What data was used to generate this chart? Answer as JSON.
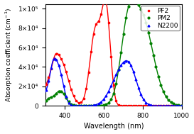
{
  "title": "",
  "xlabel": "Wavelength (nm)",
  "ylabel": "Absorption coefficient (cm$^{-1}$)",
  "xlim": [
    300,
    1000
  ],
  "ylim": [
    0,
    105000.0
  ],
  "yticks": [
    0,
    20000,
    40000,
    60000,
    80000,
    100000
  ],
  "ytick_labels": [
    "0",
    "2×10⁴",
    "4×10⁴",
    "6×10⁴",
    "8×10⁴",
    "1×10⁵"
  ],
  "xticks": [
    400,
    600,
    800,
    1000
  ],
  "legend_labels": [
    "PF2",
    "PM2",
    "N2200"
  ],
  "colors": [
    "red",
    "green",
    "blue"
  ],
  "markers": [
    "s",
    "o",
    "^"
  ],
  "linewidth": 1.0,
  "markersize": 2.0,
  "legend_fontsize": 6.5,
  "axis_fontsize": 7.0,
  "tick_fontsize": 6.5,
  "facecolor": "white"
}
